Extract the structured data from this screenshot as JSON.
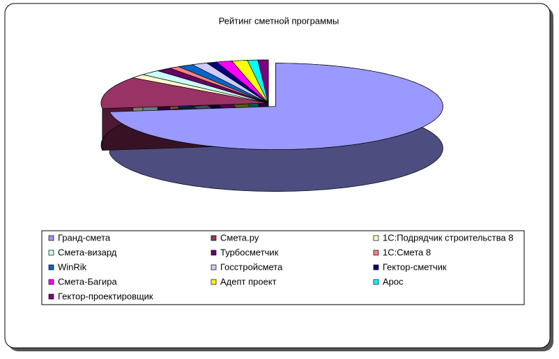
{
  "chart_data": {
    "type": "pie3d",
    "title": "Рейтинг сметной программы",
    "categories": [
      "Гранд-смета",
      "Смета.ру",
      "1С:Подрядчик строительства 8",
      "Смета-визард",
      "Турбосметчик",
      "1С:Смета 8",
      "WinRik",
      "Госстройсмета",
      "Гектор-сметчик",
      "Смета-Багира",
      "Адепт  проект",
      "Арос",
      "Гектор-проектировщик"
    ],
    "values": [
      73,
      12,
      1.5,
      2,
      1.5,
      1,
      1.5,
      1.5,
      1,
      1.5,
      1.5,
      1,
      1
    ],
    "colors": [
      "#9999ff",
      "#993366",
      "#ffffcc",
      "#ccffff",
      "#660066",
      "#ff8080",
      "#0066cc",
      "#ccccff",
      "#000080",
      "#ff00ff",
      "#ffff00",
      "#00ffff",
      "#800080"
    ]
  }
}
